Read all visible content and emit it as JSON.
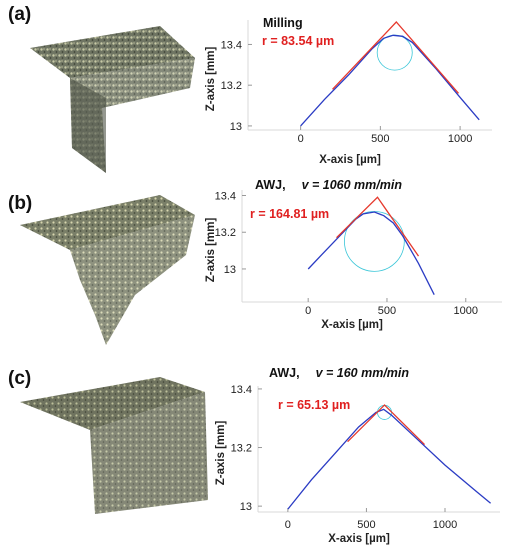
{
  "panels": [
    {
      "label": "(a)",
      "title": "Milling",
      "title_extra": "",
      "radius_text": "r = 83.54 µm",
      "chart_data": {
        "type": "line",
        "xlabel": "X-axis [µm]",
        "ylabel": "Z-axis [mm]",
        "xticks": [
          "0",
          "500",
          "1000"
        ],
        "yticks": [
          "13",
          "13.2",
          "13.4"
        ],
        "xlim": [
          -330,
          1200
        ],
        "ylim": [
          12.98,
          13.52
        ],
        "series": [
          {
            "color": "#2b3cc4",
            "x": [
              0,
              150,
              300,
              450,
              520,
              580,
              640,
              700,
              850,
              1000,
              1120
            ],
            "y": [
              13.0,
              13.13,
              13.25,
              13.38,
              13.43,
              13.445,
              13.44,
              13.41,
              13.28,
              13.14,
              13.03
            ]
          },
          {
            "color": "#e63a2e",
            "x": [
              200,
              600,
              990
            ],
            "y": [
              13.18,
              13.51,
              13.16
            ]
          }
        ],
        "fit_circle": {
          "cx": 590,
          "cy": 13.36,
          "r_x": 110,
          "color": "#3ac6d8"
        }
      }
    },
    {
      "label": "(b)",
      "title": "AWJ,",
      "title_extra": "v = 1060 mm/min",
      "radius_text": "r = 164.81 µm",
      "chart_data": {
        "type": "line",
        "xlabel": "X-axis [µm]",
        "ylabel": "Z-axis [mm]",
        "xticks": [
          "0",
          "500",
          "1000"
        ],
        "yticks": [
          "13",
          "13.2",
          "13.4"
        ],
        "xlim": [
          -420,
          1230
        ],
        "ylim": [
          12.82,
          13.43
        ],
        "series": [
          {
            "color": "#2b3cc4",
            "x": [
              0,
              100,
              200,
              300,
              350,
              420,
              480,
              540,
              600,
              700,
              800
            ],
            "y": [
              13.0,
              13.09,
              13.18,
              13.27,
              13.3,
              13.31,
              13.29,
              13.25,
              13.18,
              13.03,
              12.86
            ]
          },
          {
            "color": "#e63a2e",
            "x": [
              180,
              440,
              700
            ],
            "y": [
              13.17,
              13.39,
              13.07
            ]
          }
        ],
        "fit_circle": {
          "cx": 420,
          "cy": 13.15,
          "r_x": 190,
          "color": "#3ac6d8"
        }
      }
    },
    {
      "label": "(c)",
      "title": "AWJ,",
      "title_extra": "v = 160 mm/min",
      "radius_text": "r = 65.13 µm",
      "chart_data": {
        "type": "line",
        "xlabel": "X-axis [µm]",
        "ylabel": "Z-axis [mm]",
        "xticks": [
          "0",
          "500",
          "1000"
        ],
        "yticks": [
          "13",
          "13.2",
          "13.4"
        ],
        "xlim": [
          -190,
          1350
        ],
        "ylim": [
          12.98,
          13.41
        ],
        "series": [
          {
            "color": "#2b3cc4",
            "x": [
              0,
              150,
              300,
              450,
              560,
              610,
              660,
              800,
              1000,
              1200,
              1290
            ],
            "y": [
              12.99,
              13.09,
              13.18,
              13.27,
              13.32,
              13.33,
              13.31,
              13.24,
              13.14,
              13.05,
              13.01
            ]
          },
          {
            "color": "#e63a2e",
            "x": [
              380,
              615,
              870
            ],
            "y": [
              13.22,
              13.345,
              13.21
            ]
          }
        ],
        "fit_circle": {
          "cx": 615,
          "cy": 13.32,
          "r_x": 45,
          "color": "#3ac6d8"
        }
      }
    }
  ]
}
